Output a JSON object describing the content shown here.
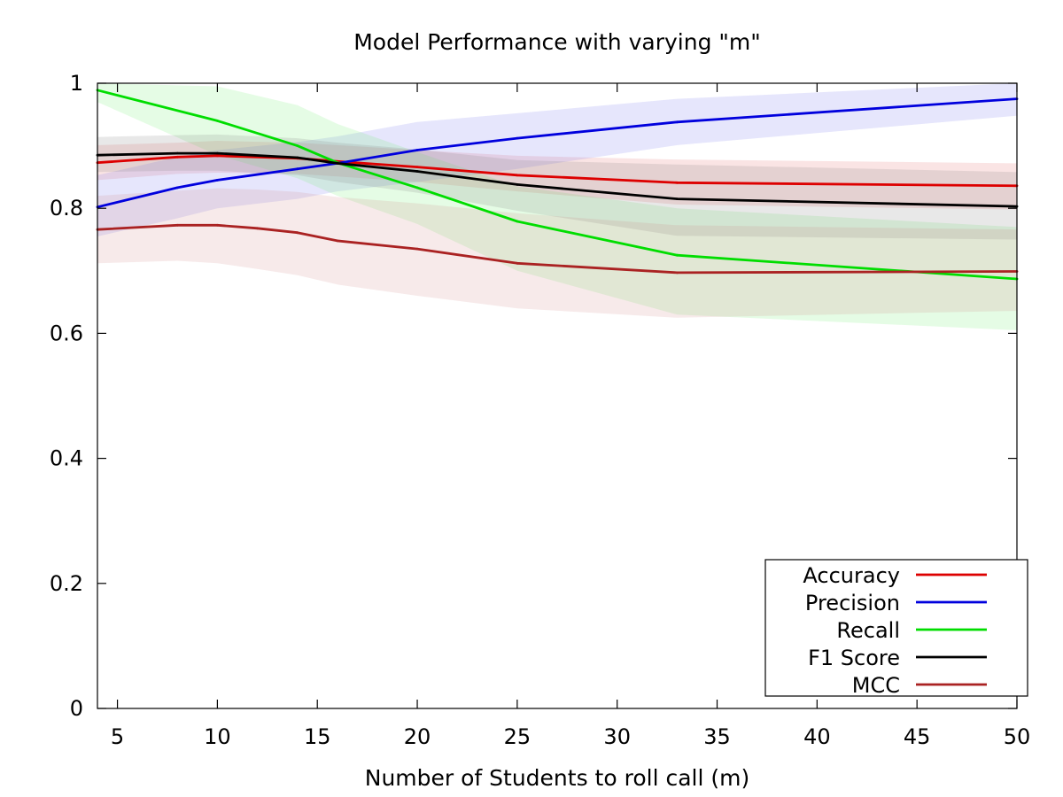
{
  "chart_data": {
    "type": "line",
    "title": "Model Performance with varying \"m\"",
    "xlabel": "Number of Students to roll call (m)",
    "ylabel": "",
    "xlim": [
      4,
      50
    ],
    "ylim": [
      0,
      1
    ],
    "xticks": [
      5,
      10,
      15,
      20,
      25,
      30,
      35,
      40,
      45,
      50
    ],
    "yticks": [
      0,
      0.2,
      0.4,
      0.6,
      0.8,
      1
    ],
    "ytick_labels": [
      "0",
      "0.2",
      "0.4",
      "0.6",
      "0.8",
      "1"
    ],
    "grid": false,
    "legend_position": "bottom-right",
    "series": [
      {
        "name": "Accuracy",
        "color": "#dd0000",
        "band_color": "#e06060",
        "x": [
          4,
          8,
          10,
          14,
          16,
          20,
          25,
          33,
          50
        ],
        "y": [
          0.873,
          0.882,
          0.884,
          0.88,
          0.875,
          0.866,
          0.853,
          0.841,
          0.836
        ],
        "lower": [
          0.845,
          0.855,
          0.857,
          0.855,
          0.851,
          0.842,
          0.827,
          0.806,
          0.798
        ],
        "upper": [
          0.901,
          0.905,
          0.908,
          0.905,
          0.901,
          0.893,
          0.884,
          0.878,
          0.872
        ]
      },
      {
        "name": "Precision",
        "color": "#0000dd",
        "band_color": "#6b6bf0",
        "x": [
          4,
          8,
          10,
          14,
          16,
          20,
          25,
          33,
          50
        ],
        "y": [
          0.802,
          0.833,
          0.845,
          0.863,
          0.872,
          0.893,
          0.912,
          0.938,
          0.975
        ],
        "lower": [
          0.755,
          0.784,
          0.8,
          0.815,
          0.827,
          0.842,
          0.863,
          0.901,
          0.948
        ],
        "upper": [
          0.853,
          0.882,
          0.893,
          0.906,
          0.915,
          0.938,
          0.952,
          0.975,
          1.0
        ]
      },
      {
        "name": "Recall",
        "color": "#00dd00",
        "band_color": "#66ee66",
        "x": [
          4,
          10,
          14,
          16,
          20,
          25,
          33,
          50
        ],
        "y": [
          0.989,
          0.94,
          0.9,
          0.873,
          0.833,
          0.779,
          0.725,
          0.687
        ],
        "lower": [
          0.97,
          0.885,
          0.848,
          0.82,
          0.775,
          0.7,
          0.63,
          0.605
        ],
        "upper": [
          1.0,
          0.995,
          0.965,
          0.935,
          0.89,
          0.835,
          0.8,
          0.77
        ]
      },
      {
        "name": "F1 Score",
        "color": "#000000",
        "band_color": "#777777",
        "x": [
          4,
          8,
          10,
          14,
          16,
          20,
          25,
          33,
          50
        ],
        "y": [
          0.885,
          0.888,
          0.888,
          0.881,
          0.872,
          0.859,
          0.838,
          0.815,
          0.803
        ],
        "lower": [
          0.858,
          0.86,
          0.86,
          0.853,
          0.842,
          0.825,
          0.796,
          0.756,
          0.75
        ],
        "upper": [
          0.914,
          0.917,
          0.918,
          0.912,
          0.905,
          0.894,
          0.877,
          0.87,
          0.858
        ]
      },
      {
        "name": "MCC",
        "color": "#aa2222",
        "band_color": "#d08080",
        "x": [
          4,
          8,
          10,
          12,
          14,
          16,
          20,
          25,
          33,
          50
        ],
        "y": [
          0.766,
          0.773,
          0.773,
          0.768,
          0.761,
          0.748,
          0.735,
          0.712,
          0.697,
          0.699
        ],
        "lower": [
          0.712,
          0.716,
          0.712,
          0.703,
          0.693,
          0.678,
          0.66,
          0.64,
          0.625,
          0.636
        ],
        "upper": [
          0.82,
          0.828,
          0.832,
          0.83,
          0.826,
          0.818,
          0.808,
          0.792,
          0.773,
          0.766
        ]
      }
    ]
  }
}
